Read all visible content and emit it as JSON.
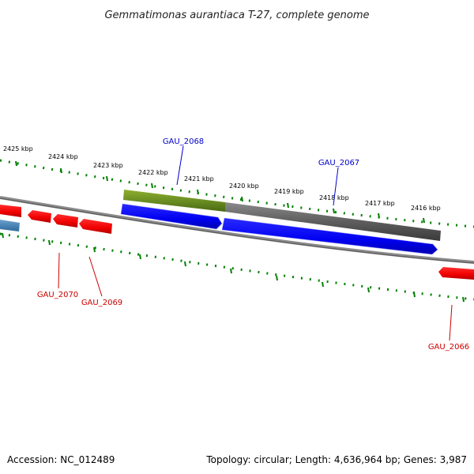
{
  "title": "Gemmatimonas aurantiaca T-27, complete genome",
  "footer": {
    "accession": "Accession: NC_012489",
    "summary": "Topology: circular; Length: 4,636,964 bp; Genes: 3,987"
  },
  "ticks": [
    "2425 kbp",
    "2424 kbp",
    "2423 kbp",
    "2422 kbp",
    "2421 kbp",
    "2420 kbp",
    "2419 kbp",
    "2418 kbp",
    "2417 kbp",
    "2416 kbp"
  ],
  "labels": {
    "gau_2068": "GAU_2068",
    "gau_2067": "GAU_2067",
    "gau_2070": "GAU_2070",
    "gau_2069": "GAU_2069",
    "gau_2066": "GAU_2066"
  },
  "colors": {
    "forward_gene": "#ff0000",
    "label_red": "#cc0000",
    "label_blue": "#0000cc",
    "cds": "#0000ff",
    "highlight": "#6b8e23",
    "feature_gray": "#606060",
    "tick_green": "#008000",
    "other_gene": "#4682b4"
  }
}
